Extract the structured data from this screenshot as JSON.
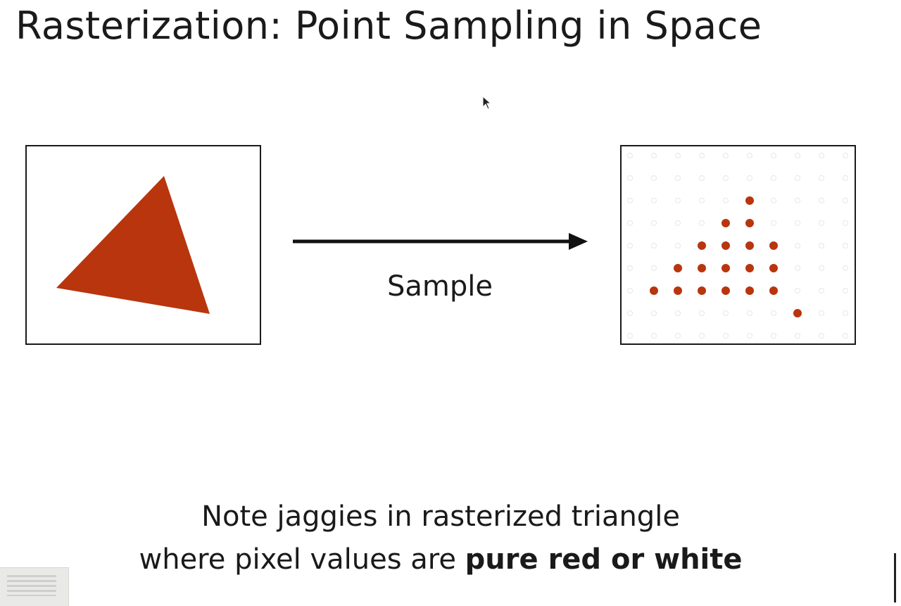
{
  "slide": {
    "title": "Rasterization: Point Sampling in Space",
    "arrow_label": "Sample",
    "note_line1": "Note jaggies in rasterized triangle",
    "note_line2_prefix": "where pixel values are ",
    "note_line2_bold": "pure red or white"
  },
  "colors": {
    "triangle": "#b8350e",
    "sample_filled": "#b8350e",
    "sample_empty": "#e6e6e6",
    "frame": "#1a1a1a"
  },
  "sample_grid": {
    "columns": 10,
    "rows": 9,
    "filled": [
      [
        5,
        2
      ],
      [
        4,
        3
      ],
      [
        5,
        3
      ],
      [
        3,
        4
      ],
      [
        4,
        4
      ],
      [
        5,
        4
      ],
      [
        6,
        4
      ],
      [
        2,
        5
      ],
      [
        3,
        5
      ],
      [
        4,
        5
      ],
      [
        5,
        5
      ],
      [
        6,
        5
      ],
      [
        1,
        6
      ],
      [
        2,
        6
      ],
      [
        3,
        6
      ],
      [
        4,
        6
      ],
      [
        5,
        6
      ],
      [
        6,
        6
      ],
      [
        7,
        7
      ]
    ]
  }
}
